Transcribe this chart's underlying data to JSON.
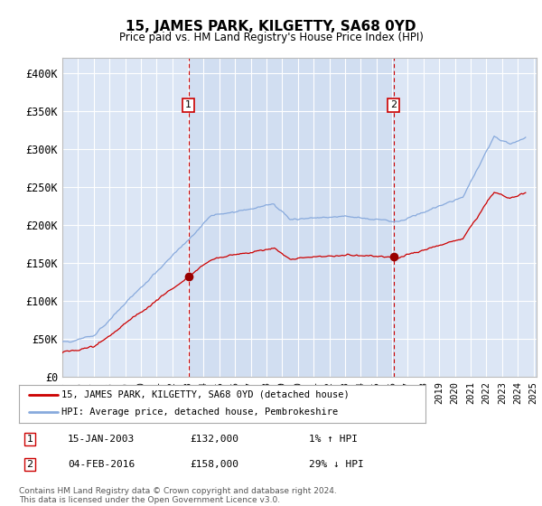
{
  "title": "15, JAMES PARK, KILGETTY, SA68 0YD",
  "subtitle": "Price paid vs. HM Land Registry's House Price Index (HPI)",
  "ylabel_ticks": [
    "£0",
    "£50K",
    "£100K",
    "£150K",
    "£200K",
    "£250K",
    "£300K",
    "£350K",
    "£400K"
  ],
  "ytick_values": [
    0,
    50000,
    100000,
    150000,
    200000,
    250000,
    300000,
    350000,
    400000
  ],
  "ylim": [
    0,
    420000
  ],
  "xlim_start": 1995.0,
  "xlim_end": 2025.2,
  "background_color": "#dce6f5",
  "plot_bg_color": "#dce6f5",
  "grid_color": "#ffffff",
  "sale1_x": 2003.04,
  "sale1_y": 132000,
  "sale2_x": 2016.09,
  "sale2_y": 158000,
  "sale1_label": "15-JAN-2003",
  "sale1_price": "£132,000",
  "sale1_hpi": "1% ↑ HPI",
  "sale2_label": "04-FEB-2016",
  "sale2_price": "£158,000",
  "sale2_hpi": "29% ↓ HPI",
  "legend_line1": "15, JAMES PARK, KILGETTY, SA68 0YD (detached house)",
  "legend_line2": "HPI: Average price, detached house, Pembrokeshire",
  "footer": "Contains HM Land Registry data © Crown copyright and database right 2024.\nThis data is licensed under the Open Government Licence v3.0.",
  "line_color_sold": "#cc0000",
  "line_color_hpi": "#88aadd",
  "marker_color_sold": "#990000"
}
